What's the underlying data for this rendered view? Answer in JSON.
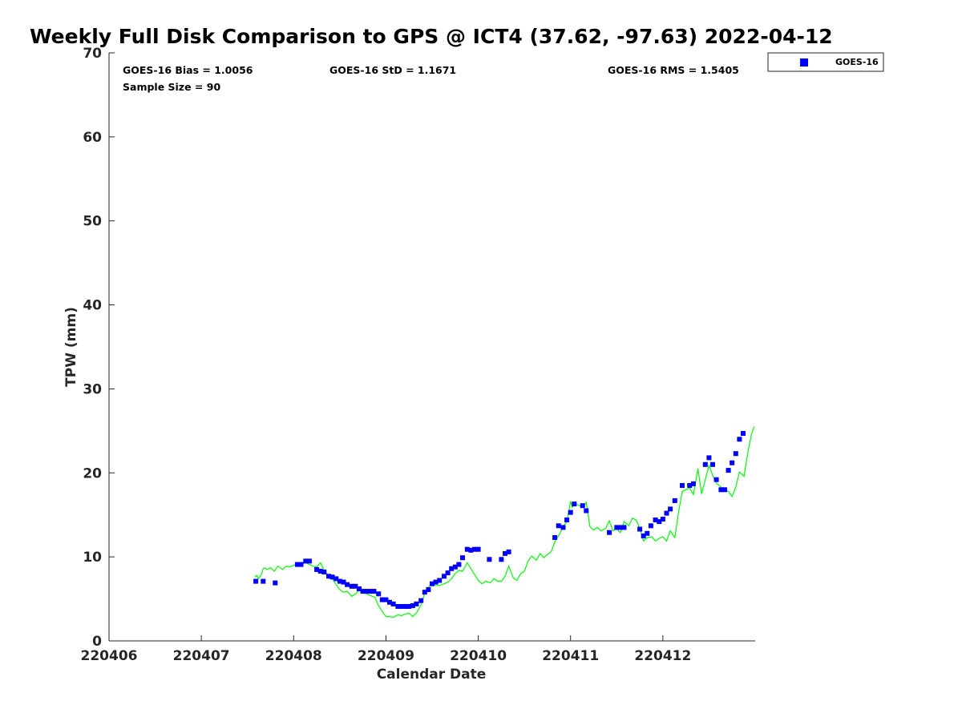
{
  "chart_data": {
    "type": "scatter",
    "title": "Weekly Full Disk Comparison to GPS @ ICT4 (37.62, -97.63) 2022-04-12",
    "xlabel": "Calendar Date",
    "ylabel": "TPW (mm)",
    "xlim": [
      220406,
      220413
    ],
    "ylim": [
      0,
      70
    ],
    "x_ticks": [
      220406,
      220407,
      220408,
      220409,
      220410,
      220411,
      220412
    ],
    "x_tick_labels": [
      "220406",
      "220407",
      "220408",
      "220409",
      "220410",
      "220411",
      "220412"
    ],
    "y_ticks": [
      0,
      10,
      20,
      30,
      40,
      50,
      60,
      70
    ],
    "y_tick_labels": [
      "0",
      "10",
      "20",
      "30",
      "40",
      "50",
      "60",
      "70"
    ],
    "grid": false,
    "legend_position": "outside-top-right",
    "stats": {
      "bias": "GOES-16 Bias = 1.0056",
      "std": "GOES-16 StD = 1.1671",
      "rms": "GOES-16 RMS = 1.5405",
      "sample": "Sample Size = 90"
    },
    "series": [
      {
        "name": "GOES-16",
        "kind": "scatter",
        "marker": "square",
        "color": "#0000ff",
        "x": [
          220407.59,
          220407.67,
          220407.8,
          220408.04,
          220408.08,
          220408.13,
          220408.17,
          220408.25,
          220408.29,
          220408.33,
          220408.38,
          220408.42,
          220408.46,
          220408.5,
          220408.54,
          220408.58,
          220408.63,
          220408.67,
          220408.71,
          220408.75,
          220408.79,
          220408.83,
          220408.87,
          220408.92,
          220408.96,
          220409.0,
          220409.04,
          220409.08,
          220409.13,
          220409.17,
          220409.21,
          220409.25,
          220409.29,
          220409.33,
          220409.38,
          220409.42,
          220409.46,
          220409.5,
          220409.54,
          220409.58,
          220409.63,
          220409.67,
          220409.71,
          220409.75,
          220409.79,
          220409.83,
          220409.88,
          220409.92,
          220409.96,
          220410.0,
          220410.12,
          220410.25,
          220410.29,
          220410.33,
          220410.83,
          220410.87,
          220410.92,
          220410.96,
          220411.0,
          220411.04,
          220411.13,
          220411.17,
          220411.42,
          220411.5,
          220411.54,
          220411.58,
          220411.75,
          220411.79,
          220411.83,
          220411.87,
          220411.92,
          220411.96,
          220412.0,
          220412.04,
          220412.08,
          220412.13,
          220412.21,
          220412.29,
          220412.33,
          220412.46,
          220412.5,
          220412.54,
          220412.58,
          220412.63,
          220412.67,
          220412.71,
          220412.75,
          220412.79,
          220412.83,
          220412.87
        ],
        "y": [
          7.1,
          7.1,
          6.9,
          9.1,
          9.1,
          9.5,
          9.5,
          8.5,
          8.3,
          8.2,
          7.7,
          7.6,
          7.4,
          7.1,
          7.0,
          6.7,
          6.5,
          6.5,
          6.2,
          5.9,
          5.9,
          5.9,
          5.9,
          5.6,
          4.9,
          4.9,
          4.6,
          4.4,
          4.1,
          4.1,
          4.1,
          4.1,
          4.2,
          4.4,
          4.8,
          5.8,
          6.1,
          6.8,
          7.0,
          7.2,
          7.7,
          8.1,
          8.6,
          8.8,
          9.1,
          9.9,
          10.9,
          10.8,
          10.9,
          10.9,
          9.7,
          9.7,
          10.4,
          10.6,
          12.3,
          13.7,
          13.5,
          14.4,
          15.3,
          16.3,
          16.1,
          15.5,
          12.9,
          13.5,
          13.5,
          13.5,
          13.3,
          12.5,
          12.8,
          13.7,
          14.4,
          14.2,
          14.5,
          15.2,
          15.7,
          16.7,
          18.5,
          18.5,
          18.7,
          21.0,
          21.8,
          21.0,
          19.2,
          18.0,
          18.0,
          20.3,
          21.2,
          22.3,
          24.0,
          24.7
        ]
      },
      {
        "kind": "line",
        "color": "#00ff00",
        "x": [
          220407.58,
          220407.6,
          220407.62,
          220407.65,
          220407.67,
          220407.69,
          220407.71,
          220407.75,
          220407.79,
          220407.83,
          220407.88,
          220407.92,
          220407.96,
          220408.0,
          220408.04,
          220408.08,
          220408.13,
          220408.17,
          220408.21,
          220408.25,
          220408.29,
          220408.33,
          220408.38,
          220408.42,
          220408.46,
          220408.5,
          220408.54,
          220408.58,
          220408.63,
          220408.67,
          220408.71,
          220408.75,
          220408.79,
          220408.83,
          220408.88,
          220408.92,
          220408.96,
          220409.0,
          220409.04,
          220409.08,
          220409.13,
          220409.17,
          220409.21,
          220409.25,
          220409.29,
          220409.33,
          220409.38,
          220409.42,
          220409.46,
          220409.5,
          220409.54,
          220409.58,
          220409.63,
          220409.67,
          220409.71,
          220409.75,
          220409.79,
          220409.83,
          220409.88,
          220409.92,
          220409.96,
          220410.0,
          220410.04,
          220410.08,
          220410.13,
          220410.17,
          220410.21,
          220410.25,
          220410.29,
          220410.33,
          220410.38,
          220410.42,
          220410.46,
          220410.5,
          220410.54,
          220410.58,
          220410.63,
          220410.67,
          220410.71,
          220410.75,
          220410.79,
          220410.83,
          220410.88,
          220410.92,
          220410.96,
          220411.0,
          220411.02,
          220411.04,
          220411.08,
          220411.13,
          220411.17,
          220411.21,
          220411.25,
          220411.29,
          220411.33,
          220411.38,
          220411.42,
          220411.46,
          220411.5,
          220411.54,
          220411.58,
          220411.63,
          220411.67,
          220411.71,
          220411.75,
          220411.79,
          220411.83,
          220411.88,
          220411.92,
          220411.96,
          220412.0,
          220412.04,
          220412.08,
          220412.13,
          220412.17,
          220412.21,
          220412.25,
          220412.29,
          220412.33,
          220412.38,
          220412.42,
          220412.46,
          220412.5,
          220412.54,
          220412.58,
          220412.63,
          220412.67,
          220412.71,
          220412.75,
          220412.79,
          220412.83,
          220412.88,
          220412.92,
          220412.96,
          220412.99
        ],
        "y": [
          7.6,
          7.8,
          7.4,
          7.9,
          8.6,
          8.7,
          8.5,
          8.7,
          8.3,
          8.9,
          8.5,
          8.9,
          8.8,
          9.0,
          9.1,
          9.2,
          9.3,
          9.1,
          8.9,
          8.8,
          9.3,
          8.4,
          7.7,
          7.4,
          6.7,
          6.1,
          5.8,
          5.9,
          5.3,
          5.6,
          6.0,
          5.8,
          5.6,
          5.4,
          5.2,
          4.2,
          3.5,
          2.9,
          2.9,
          2.8,
          3.1,
          3.0,
          3.2,
          3.3,
          2.9,
          3.3,
          4.3,
          5.7,
          6.4,
          6.9,
          6.6,
          6.6,
          6.8,
          7.0,
          7.4,
          8.0,
          8.4,
          8.3,
          9.3,
          8.6,
          7.9,
          7.2,
          6.8,
          7.1,
          6.9,
          7.4,
          7.1,
          7.1,
          7.7,
          8.9,
          7.5,
          7.2,
          8.0,
          8.3,
          9.5,
          10.1,
          9.6,
          10.4,
          9.9,
          10.3,
          10.6,
          11.8,
          12.7,
          13.6,
          14.2,
          16.6,
          15.9,
          16.3,
          16.2,
          15.9,
          16.5,
          13.6,
          13.2,
          13.5,
          13.1,
          13.4,
          14.3,
          13.1,
          13.3,
          12.9,
          14.2,
          13.7,
          14.6,
          14.4,
          13.4,
          11.9,
          12.3,
          12.4,
          11.9,
          12.2,
          12.4,
          11.9,
          13.1,
          12.3,
          15.3,
          17.8,
          18.0,
          18.2,
          17.4,
          20.5,
          17.5,
          19.2,
          20.9,
          19.7,
          18.8,
          18.3,
          17.9,
          17.8,
          17.2,
          18.3,
          20.1,
          19.6,
          22.4,
          24.6,
          25.5
        ]
      }
    ],
    "legend": {
      "entries": [
        "GOES-16"
      ]
    }
  }
}
